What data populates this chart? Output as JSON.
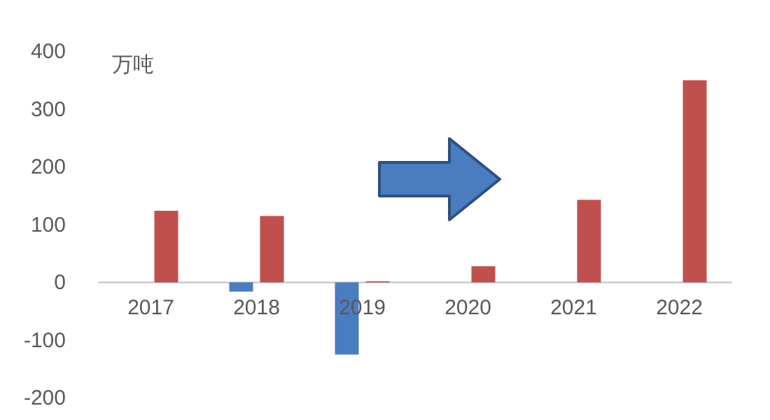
{
  "chart_data": {
    "type": "bar",
    "ylabel": "万吨",
    "categories": [
      "2017",
      "2018",
      "2019",
      "2020",
      "2021",
      "2022"
    ],
    "series": [
      {
        "color": "#4a7cc0",
        "values": [
          0,
          -16,
          -125,
          0,
          0,
          0
        ]
      },
      {
        "color": "#c0504d",
        "values": [
          124,
          115,
          2,
          28,
          143,
          350
        ]
      }
    ],
    "ylim": [
      -200,
      400
    ],
    "yticks": [
      -200,
      -100,
      0,
      100,
      200,
      300,
      400
    ],
    "grid": false
  }
}
